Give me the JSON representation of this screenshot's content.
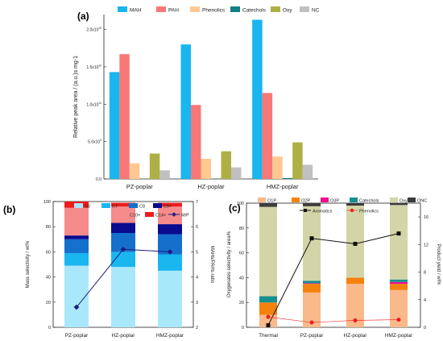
{
  "chart_data": [
    {
      "panel_label": "(a)",
      "type": "bar",
      "categories": [
        "PZ-poplar",
        "HZ-poplar",
        "HMZ-poplar"
      ],
      "ylabel": "Relative peak area / (a.u.)s mg-1",
      "ylim": [
        0,
        22000000000
      ],
      "yticks": [
        "0.0",
        "5.0x10^9",
        "1.0x10^10",
        "1.5x10^10",
        "2.0x10^10"
      ],
      "legend_position": "top",
      "series": [
        {
          "name": "MAH",
          "color": "#19b6f0",
          "values": [
            14300000000,
            18000000000,
            21300000000
          ]
        },
        {
          "name": "PAH",
          "color": "#f87878",
          "values": [
            16700000000,
            9900000000,
            11500000000
          ]
        },
        {
          "name": "Phenolics",
          "color": "#ffc891",
          "values": [
            2100000000,
            2700000000,
            3000000000
          ]
        },
        {
          "name": "Catechols",
          "color": "#118080",
          "values": [
            0,
            0,
            120000000
          ]
        },
        {
          "name": "Oxy",
          "color": "#aeb045",
          "values": [
            3400000000,
            3700000000,
            4900000000
          ]
        },
        {
          "name": "NC",
          "color": "#c0c0c0",
          "values": [
            1150000000,
            1550000000,
            1900000000
          ]
        }
      ]
    },
    {
      "panel_label": "(b)",
      "type": "bar",
      "stacked": true,
      "categories": [
        "PZ-poplar",
        "HZ-poplar",
        "HMZ-poplar"
      ],
      "ylabel": "Mass selectivity / wt%",
      "y2label": "MAHs/PAHs ratio",
      "ylim": [
        0,
        100
      ],
      "y2lim": [
        2,
        7
      ],
      "yticks": [
        0,
        20,
        40,
        60,
        80,
        100
      ],
      "y2ticks": [
        2,
        3,
        4,
        5,
        6,
        7
      ],
      "legend_position": "top",
      "series": [
        {
          "name": "C6",
          "color": "#a9e8fb",
          "values": [
            49,
            48,
            45
          ]
        },
        {
          "name": "C7",
          "color": "#19b6f0",
          "values": [
            10,
            12,
            13
          ]
        },
        {
          "name": "C8",
          "color": "#1570cc",
          "values": [
            11,
            15,
            16
          ]
        },
        {
          "name": "C9+",
          "color": "#0b0b8f",
          "values": [
            3,
            8,
            8
          ]
        },
        {
          "name": "C10+",
          "color": "#f58b8b",
          "values": [
            22,
            13,
            14
          ]
        },
        {
          "name": "C14+",
          "color": "#ee1c1c",
          "values": [
            5,
            3,
            3
          ]
        }
      ],
      "line_series": [
        {
          "name": "M/P",
          "color": "#1e1e80",
          "axis": "right",
          "values": [
            2.8,
            5.1,
            5.0
          ]
        }
      ]
    },
    {
      "panel_label": "(c)",
      "type": "bar",
      "stacked": true,
      "categories": [
        "Thermal",
        "PZ-poplar",
        "HZ-poplar",
        "HMZ-poplar"
      ],
      "ylabel": "Oxygenates selectivity / area%",
      "y2label": "Product yield / wt%",
      "ylim": [
        0,
        100
      ],
      "y2lim": [
        0,
        18
      ],
      "yticks": [
        0,
        20,
        40,
        60,
        80,
        100
      ],
      "y2ticks": [
        0,
        4,
        8,
        12,
        16
      ],
      "legend_position": "top",
      "series": [
        {
          "name": "O1P",
          "color": "#f9b98b",
          "values": [
            10,
            28,
            35,
            30
          ]
        },
        {
          "name": "O2P",
          "color": "#f5820f",
          "values": [
            10,
            7,
            5,
            5
          ]
        },
        {
          "name": "O3P",
          "color": "#ec0f91",
          "values": [
            0,
            0.5,
            0,
            1.5
          ]
        },
        {
          "name": "Catechols",
          "color": "#158f90",
          "values": [
            5,
            2,
            0,
            2
          ]
        },
        {
          "name": "Oxy",
          "color": "#d3d5a8",
          "values": [
            72,
            60,
            58,
            60
          ]
        },
        {
          "name": "ONC",
          "color": "#3c3c3c",
          "values": [
            3,
            2.5,
            2,
            1.5
          ]
        }
      ],
      "line_series": [
        {
          "name": "Aromatics",
          "color": "#111111",
          "axis": "right",
          "values": [
            0.3,
            12.9,
            12.1,
            13.6
          ]
        },
        {
          "name": "Phenolics",
          "color": "#ee1c1c",
          "axis": "right",
          "values": [
            1.5,
            0.7,
            1.0,
            1.1
          ]
        }
      ]
    }
  ]
}
